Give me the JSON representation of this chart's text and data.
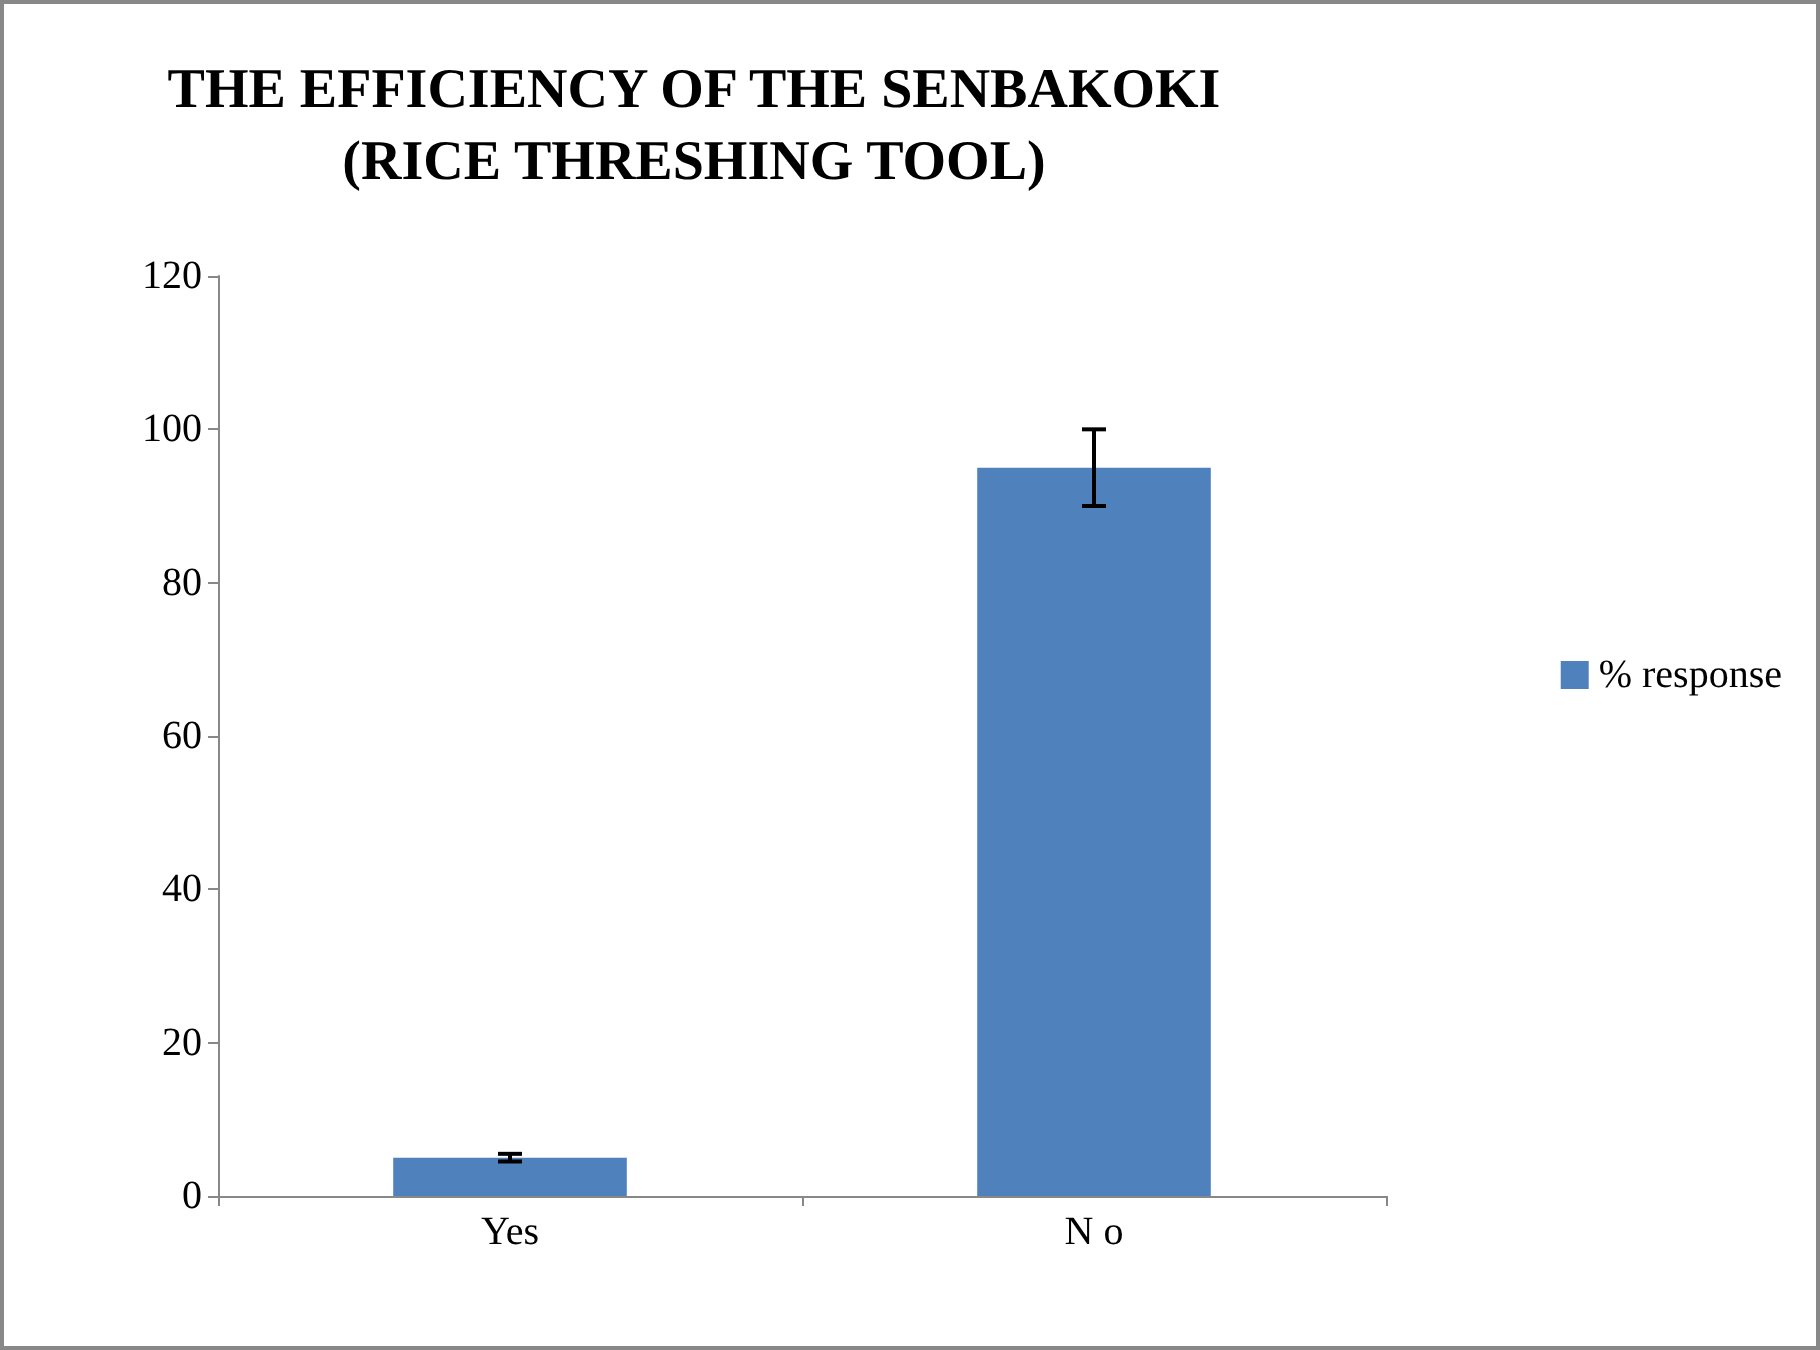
{
  "chart_data": {
    "type": "bar",
    "title": "THE EFFICIENCY OF THE SENBAKOKI\n(RICE THRESHING TOOL)",
    "categories": [
      "Yes",
      "N o"
    ],
    "series": [
      {
        "name": "% response",
        "color": "#4f81bd",
        "values": [
          5,
          95
        ],
        "errors": [
          0.5,
          5
        ]
      }
    ],
    "ylim": [
      0,
      120
    ],
    "yticks": [
      0,
      20,
      40,
      60,
      80,
      100,
      120
    ],
    "grid": false,
    "legend": "right"
  }
}
